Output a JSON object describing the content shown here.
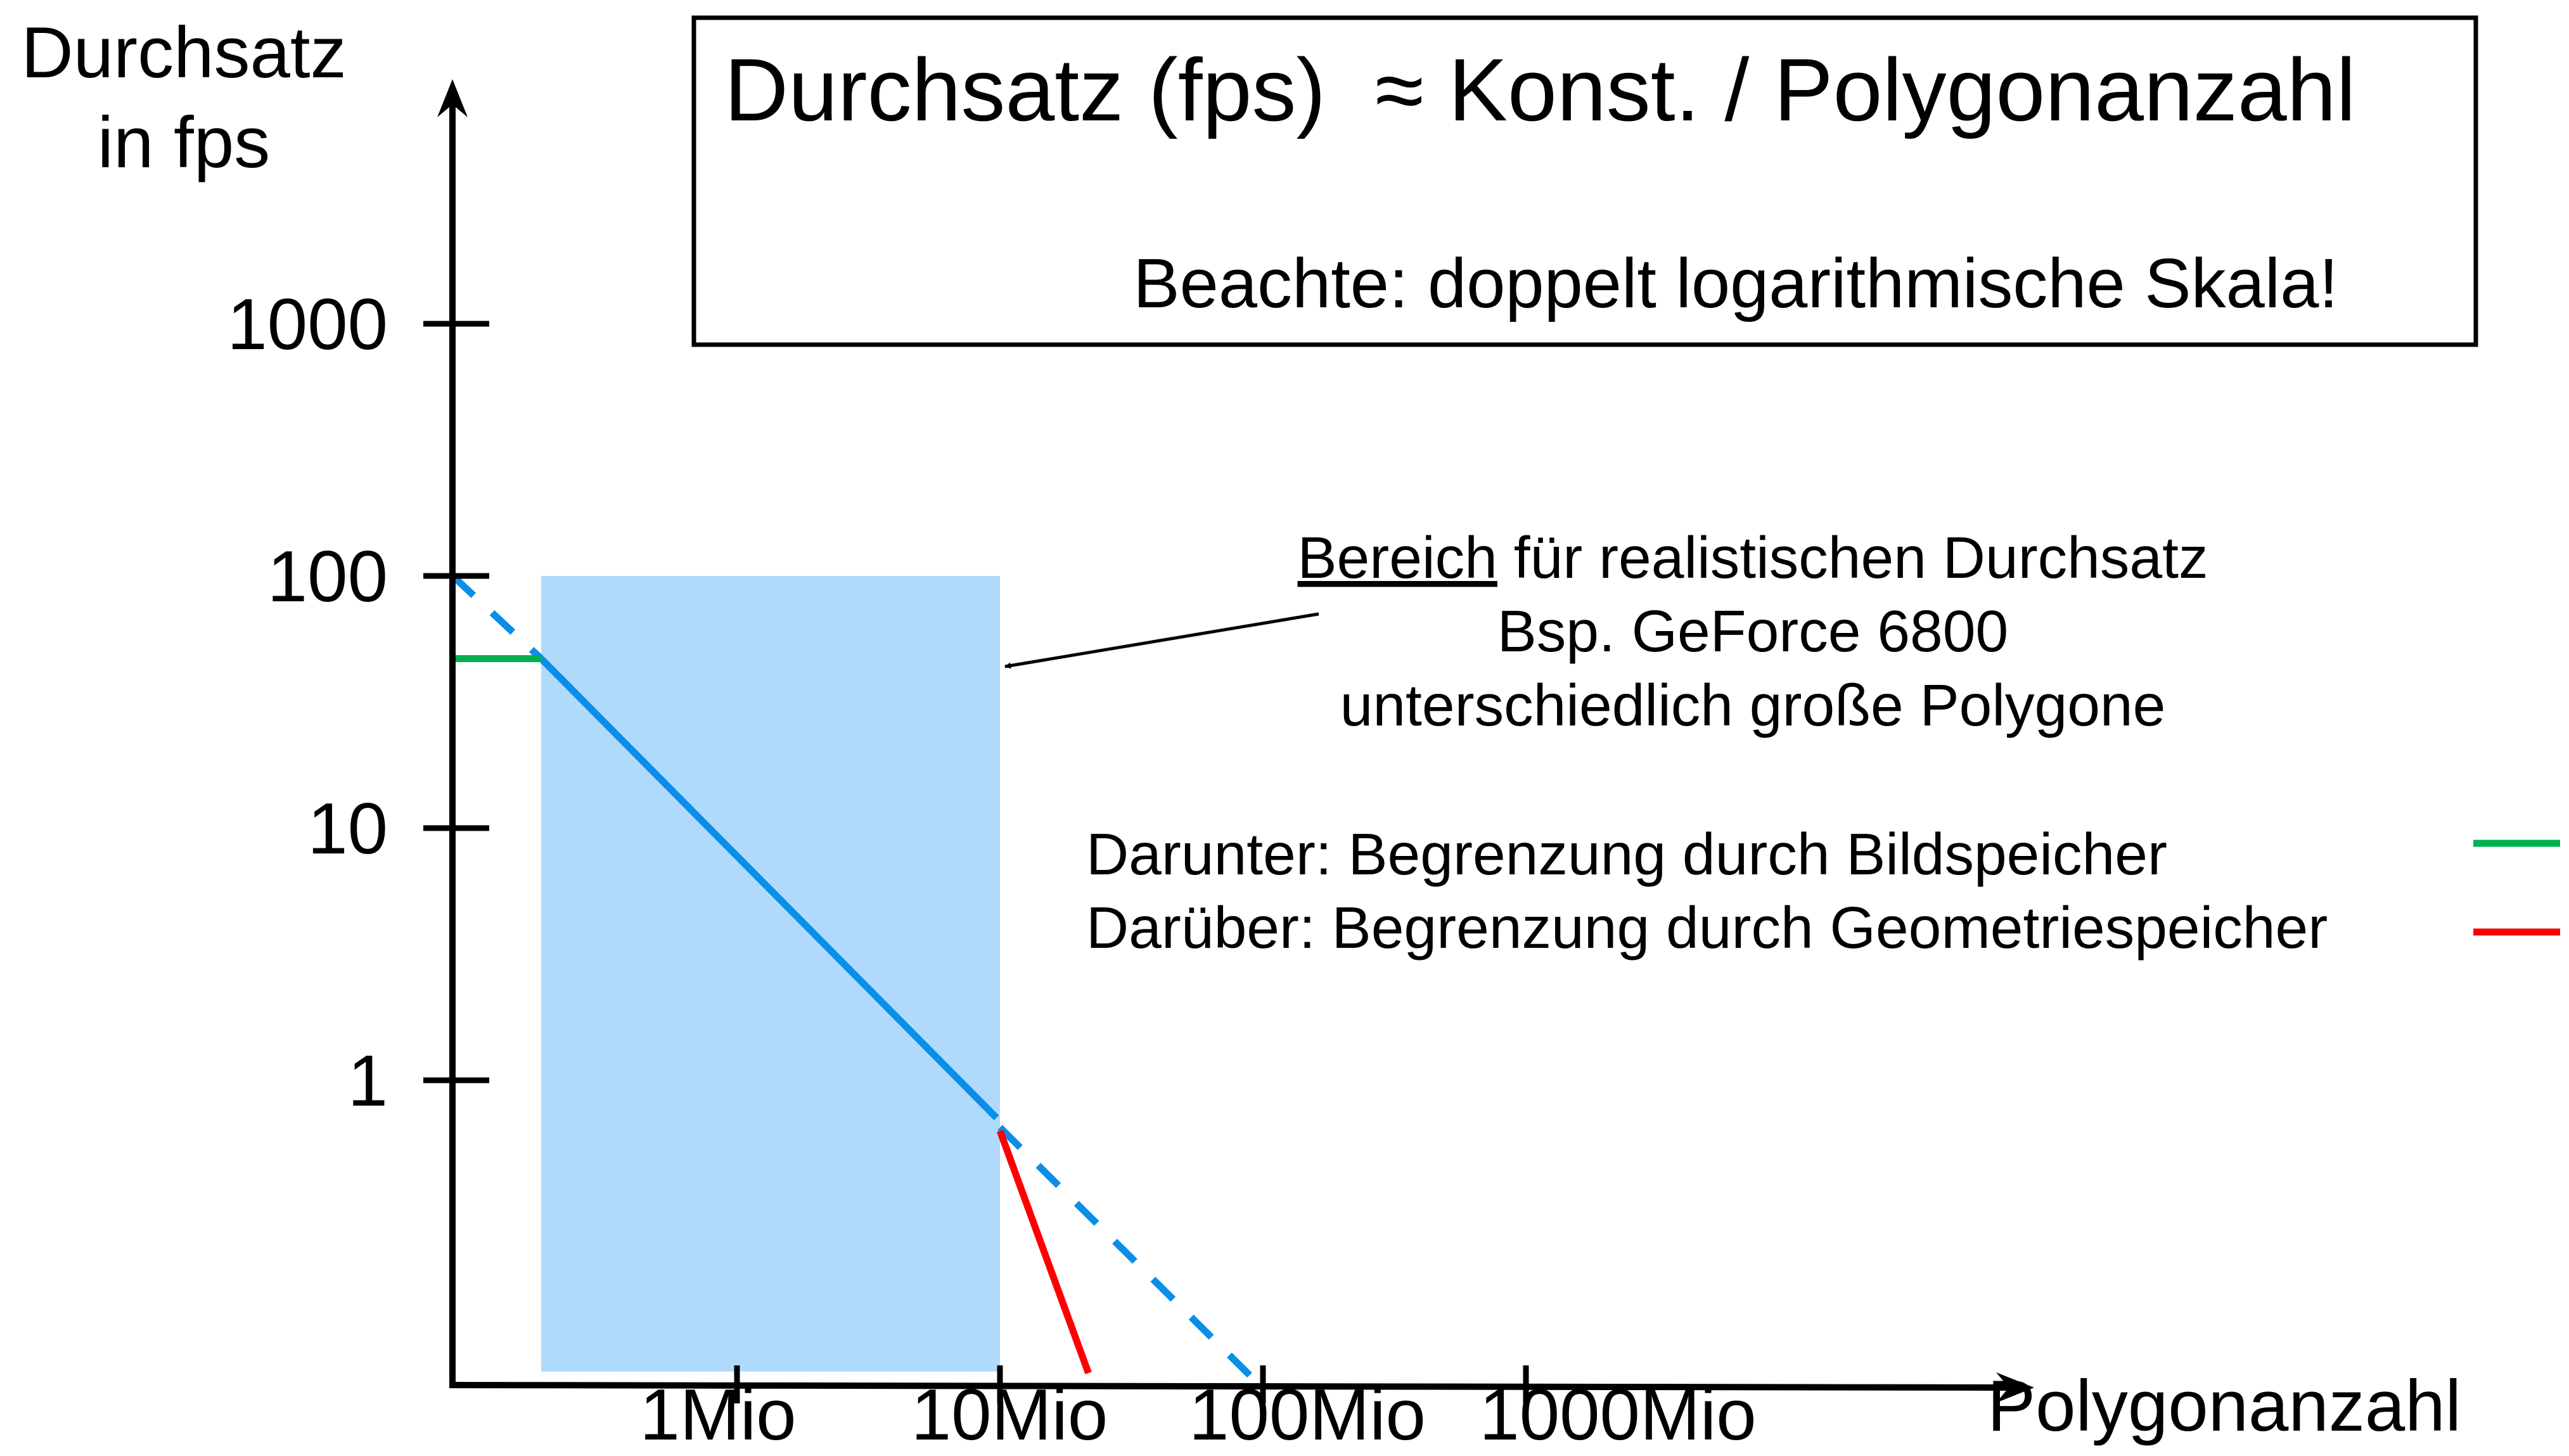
{
  "chart_data": {
    "type": "line",
    "x_scale": "log",
    "y_scale": "log",
    "grid": false,
    "xlabel": "Polygonanzahl",
    "ylabel": [
      "Durchsatz",
      "in fps"
    ],
    "x_ticks": [
      {
        "value": 1,
        "label": "1Mio"
      },
      {
        "value": 10,
        "label": "10Mio"
      },
      {
        "value": 100,
        "label": "100Mio"
      },
      {
        "value": 1000,
        "label": "1000Mio"
      }
    ],
    "y_ticks": [
      {
        "value": 1,
        "label": "1"
      },
      {
        "value": 10,
        "label": "10"
      },
      {
        "value": 100,
        "label": "100"
      },
      {
        "value": 1000,
        "label": "1000"
      }
    ],
    "title_box": {
      "formula": "Durchsatz (fps)  ≈ Konst. / Polygonanzahl",
      "note": "Beachte: doppelt logarithmische Skala!"
    },
    "region": {
      "x": [
        0.18,
        10
      ],
      "y": [
        0.07,
        100
      ],
      "color": "#b0dafb"
    },
    "series": [
      {
        "style": "dashed",
        "color": "#0a8ee8",
        "points": [
          [
            0.083,
            100
          ],
          [
            0.18,
            47
          ]
        ]
      },
      {
        "style": "solid",
        "color": "#0a8ee8",
        "points": [
          [
            0.18,
            47
          ],
          [
            9.7,
            0.71
          ]
        ]
      },
      {
        "style": "dashed",
        "color": "#0a8ee8",
        "points": [
          [
            10,
            0.65
          ],
          [
            100,
            0.06
          ]
        ]
      },
      {
        "style": "solid",
        "color": "#00b050",
        "points": [
          [
            0.083,
            47
          ],
          [
            0.18,
            47
          ]
        ]
      },
      {
        "style": "solid",
        "color": "#ff0000",
        "points": [
          [
            10,
            0.63
          ],
          [
            21.7,
            0.069
          ]
        ]
      }
    ],
    "annotation": {
      "underlined": "Bereich",
      "line1_rest": " für realistischen Durchsatz",
      "line2": "Bsp. GeForce 6800",
      "line3": "unterschiedlich große Polygone"
    },
    "legend": [
      {
        "label": "Darunter: Begrenzung durch Bildspeicher",
        "color": "#00b050"
      },
      {
        "label": "Darüber: Begrenzung durch Geometriespeicher",
        "color": "#ff0000"
      }
    ]
  }
}
